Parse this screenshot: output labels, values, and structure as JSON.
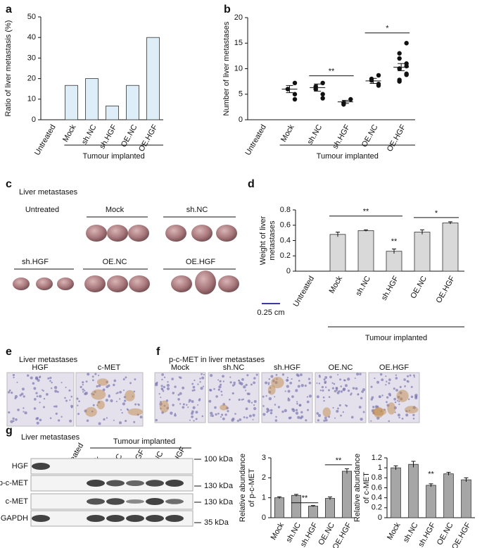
{
  "chart_data": [
    {
      "panel": "a",
      "type": "bar",
      "categories": [
        "Untreated",
        "Mock",
        "sh.NC",
        "sh.HGF",
        "OE.NC",
        "OE.HGF"
      ],
      "values": [
        0,
        16.7,
        20,
        6.7,
        16.7,
        40
      ],
      "color": "#deeef8",
      "ylim": [
        0,
        50
      ],
      "yticks": [
        0,
        10,
        20,
        30,
        40,
        50
      ],
      "ylabel": "Ratio of liver metastasis (%)",
      "group_label": "Tumour implanted"
    },
    {
      "panel": "b",
      "type": "dot",
      "categories": [
        "Untreated",
        "Mock",
        "sh.NC",
        "sh.HGF",
        "OE.NC",
        "OE.HGF"
      ],
      "points": [
        [],
        [
          7.2,
          6,
          6,
          5,
          4
        ],
        [
          7.2,
          6.5,
          6,
          5,
          4.2
        ],
        [
          4,
          3.3,
          3
        ],
        [
          8.7,
          8,
          7.7,
          7,
          6.7
        ],
        [
          15,
          13,
          12,
          11,
          10.5,
          10,
          10,
          9,
          8.8,
          7.8,
          7.5
        ]
      ],
      "means": [
        null,
        6,
        6.3,
        3.5,
        7.6,
        10.3
      ],
      "sem": [
        null,
        0.7,
        0.7,
        0.3,
        0.5,
        0.7
      ],
      "color": "#111111",
      "ylim": [
        0,
        20
      ],
      "yticks": [
        0,
        5,
        10,
        15,
        20
      ],
      "ylabel": "Number of liver metastases",
      "group_label": "Tumour implanted",
      "annotations": [
        "**",
        "*"
      ]
    },
    {
      "panel": "d",
      "type": "bar",
      "categories": [
        "Untreated",
        "Mock",
        "sh.NC",
        "sh.HGF",
        "OE.NC",
        "OE.HGF"
      ],
      "values": [
        null,
        0.48,
        0.53,
        0.26,
        0.51,
        0.63
      ],
      "errors": [
        null,
        0.03,
        0.01,
        0.03,
        0.03,
        0.015
      ],
      "color": "#d9d9d9",
      "ylim": [
        0,
        0.8
      ],
      "yticks": [
        0,
        0.2,
        0.4,
        0.6,
        0.8
      ],
      "ylabel": [
        "Weight of liver",
        "metastases"
      ],
      "group_label": "Tumour implanted",
      "annotations": [
        "**",
        "**",
        "*"
      ]
    },
    {
      "type": "bar",
      "categories": [
        "Mock",
        "sh.NC",
        "sh.HGF",
        "OE.NC",
        "OE.HGF"
      ],
      "values": [
        1,
        1.12,
        0.58,
        0.97,
        2.33
      ],
      "errors": [
        0.05,
        0.05,
        0.03,
        0.07,
        0.12
      ],
      "color": "#a6a6a6",
      "ylim": [
        0,
        3
      ],
      "yticks": [
        0,
        1,
        2,
        3
      ],
      "ylabel": [
        "Relative abundance",
        "of p-c-MET"
      ],
      "annotations": [
        "**",
        "**"
      ]
    },
    {
      "type": "bar",
      "categories": [
        "Mock",
        "sh.NC",
        "sh.HGF",
        "OE.NC",
        "OE.HGF"
      ],
      "values": [
        1,
        1.07,
        0.65,
        0.88,
        0.76
      ],
      "errors": [
        0.04,
        0.06,
        0.03,
        0.03,
        0.04
      ],
      "color": "#a6a6a6",
      "ylim": [
        0,
        1.2
      ],
      "yticks": [
        0,
        0.2,
        0.4,
        0.6,
        0.8,
        1,
        1.2
      ],
      "ylabel": [
        "Relative abundance",
        "of c-MET"
      ],
      "annotations": [
        "**"
      ]
    }
  ],
  "figure": {
    "c": {
      "letter": "c",
      "title": "Liver metastases",
      "groups": [
        "Untreated",
        "Mock",
        "sh.NC",
        "sh.HGF",
        "OE.NC",
        "OE.HGF"
      ],
      "scale": "0.25 cm"
    },
    "e": {
      "letter": "e",
      "title": "Liver metastases",
      "stains": [
        "HGF",
        "c-MET"
      ]
    },
    "f": {
      "letter": "f",
      "title": "p-c-MET in liver metastases",
      "groups": [
        "Mock",
        "sh.NC",
        "sh.HGF",
        "OE.NC",
        "OE.HGF"
      ]
    },
    "g": {
      "letter": "g",
      "title": "Liver metastases",
      "group_label": "Tumour implanted",
      "lanes": [
        "Untreated",
        "Mock",
        "sh.NC",
        "sh.HGF",
        "OE.NC",
        "OE.HGF"
      ],
      "proteins": [
        "HGF",
        "p-c-MET",
        "c-MET",
        "GAPDH"
      ],
      "markers": [
        "100 kDa",
        "130 kDa",
        "130 kDa",
        "35 kDa"
      ]
    }
  }
}
